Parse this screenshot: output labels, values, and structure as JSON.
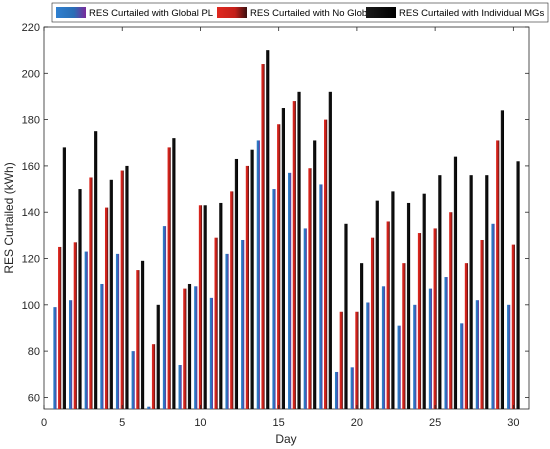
{
  "chart_data": {
    "type": "bar",
    "xlabel": "Day",
    "ylabel": "RES Curtailed (kWh)",
    "xlim": [
      0,
      31
    ],
    "ylim": [
      55,
      220
    ],
    "xticks": [
      0,
      5,
      10,
      15,
      20,
      25,
      30
    ],
    "yticks": [
      60,
      80,
      100,
      120,
      140,
      160,
      180,
      200,
      220
    ],
    "grid": false,
    "legend_position": "top",
    "x": [
      1,
      2,
      3,
      4,
      5,
      6,
      7,
      8,
      9,
      10,
      11,
      12,
      13,
      14,
      15,
      16,
      17,
      18,
      19,
      20,
      21,
      22,
      23,
      24,
      25,
      26,
      27,
      28,
      29,
      30
    ],
    "series": [
      {
        "name": "RES Curtailed with Global PL",
        "color": "#2a6db5",
        "values": [
          99,
          102,
          123,
          109,
          122,
          80,
          56,
          134,
          74,
          108,
          103,
          122,
          128,
          171,
          150,
          157,
          133,
          152,
          71,
          73,
          101,
          108,
          91,
          100,
          107,
          112,
          92,
          102,
          135,
          100
        ]
      },
      {
        "name": "RES Curtailed with No Global PL",
        "color": "#d0201b",
        "values": [
          125,
          127,
          155,
          142,
          158,
          115,
          83,
          168,
          107,
          143,
          129,
          149,
          160,
          204,
          178,
          188,
          159,
          180,
          97,
          97,
          129,
          136,
          118,
          131,
          133,
          140,
          118,
          128,
          171,
          126
        ]
      },
      {
        "name": "RES Curtailed with Individual MGs",
        "color": "#000000",
        "values": [
          168,
          150,
          175,
          154,
          160,
          119,
          100,
          172,
          109,
          143,
          144,
          163,
          167,
          210,
          185,
          192,
          171,
          192,
          135,
          118,
          145,
          149,
          144,
          148,
          156,
          164,
          156,
          156,
          184,
          162
        ]
      }
    ]
  }
}
